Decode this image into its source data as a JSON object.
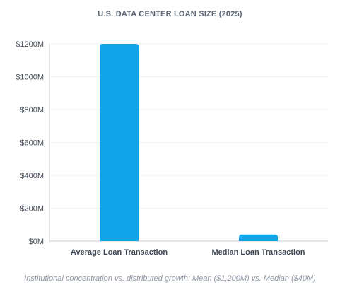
{
  "chart_data": {
    "type": "bar",
    "title": "U.S. DATA CENTER LOAN SIZE (2025)",
    "categories": [
      "Average Loan Transaction",
      "Median Loan Transaction"
    ],
    "values": [
      1200,
      40
    ],
    "ylim": [
      0,
      1200
    ],
    "yticks": [
      0,
      200,
      400,
      600,
      800,
      1000,
      1200
    ],
    "ytick_labels": [
      "$0M",
      "$200M",
      "$400M",
      "$600M",
      "$800M",
      "$1000M",
      "$1200M"
    ],
    "grid": true,
    "bar_color": "#12a4e8",
    "caption": "Institutional concentration vs. distributed growth: Mean ($1,200M) vs. Median ($40M)"
  }
}
